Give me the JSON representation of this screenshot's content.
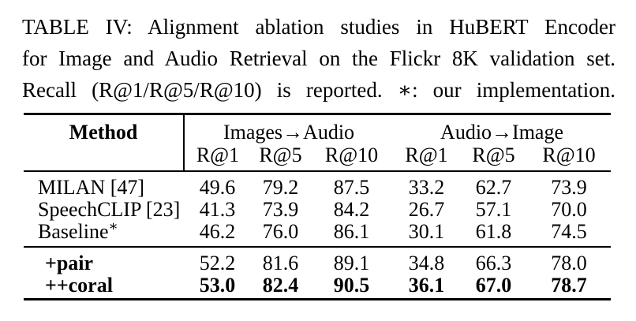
{
  "caption": {
    "lines": [
      "TABLE IV: Alignment ablation studies in HuBERT Encoder",
      "for Image and Audio Retrieval on the Flickr 8K validation set.",
      "Recall (R@1/R@5/R@10) is reported. ∗: our implementation."
    ]
  },
  "table": {
    "header": {
      "method": "Method",
      "groups": [
        {
          "label": "Images→Audio",
          "metrics": [
            "R@1",
            "R@5",
            "R@10"
          ]
        },
        {
          "label": "Audio→Image",
          "metrics": [
            "R@1",
            "R@5",
            "R@10"
          ]
        }
      ]
    },
    "sections": [
      {
        "rows": [
          {
            "method": "MILAN [47]",
            "sup": "",
            "values": [
              "49.6",
              "79.2",
              "87.5",
              "33.2",
              "62.7",
              "73.9"
            ]
          },
          {
            "method": "SpeechCLIP [23]",
            "sup": "",
            "values": [
              "41.3",
              "73.9",
              "84.2",
              "26.7",
              "57.1",
              "70.0"
            ]
          },
          {
            "method": "Baseline",
            "sup": "∗",
            "values": [
              "46.2",
              "76.0",
              "86.1",
              "30.1",
              "61.8",
              "74.5"
            ]
          }
        ]
      },
      {
        "rows": [
          {
            "method": "+pair",
            "sup": "",
            "values": [
              "52.2",
              "81.6",
              "89.1",
              "34.8",
              "66.3",
              "78.0"
            ]
          },
          {
            "method": "++coral",
            "sup": "",
            "values": [
              "53.0",
              "82.4",
              "90.5",
              "36.1",
              "67.0",
              "78.7"
            ]
          }
        ]
      }
    ]
  },
  "colors": {
    "text": "#000000",
    "rule": "#000000",
    "background": "#ffffff"
  }
}
